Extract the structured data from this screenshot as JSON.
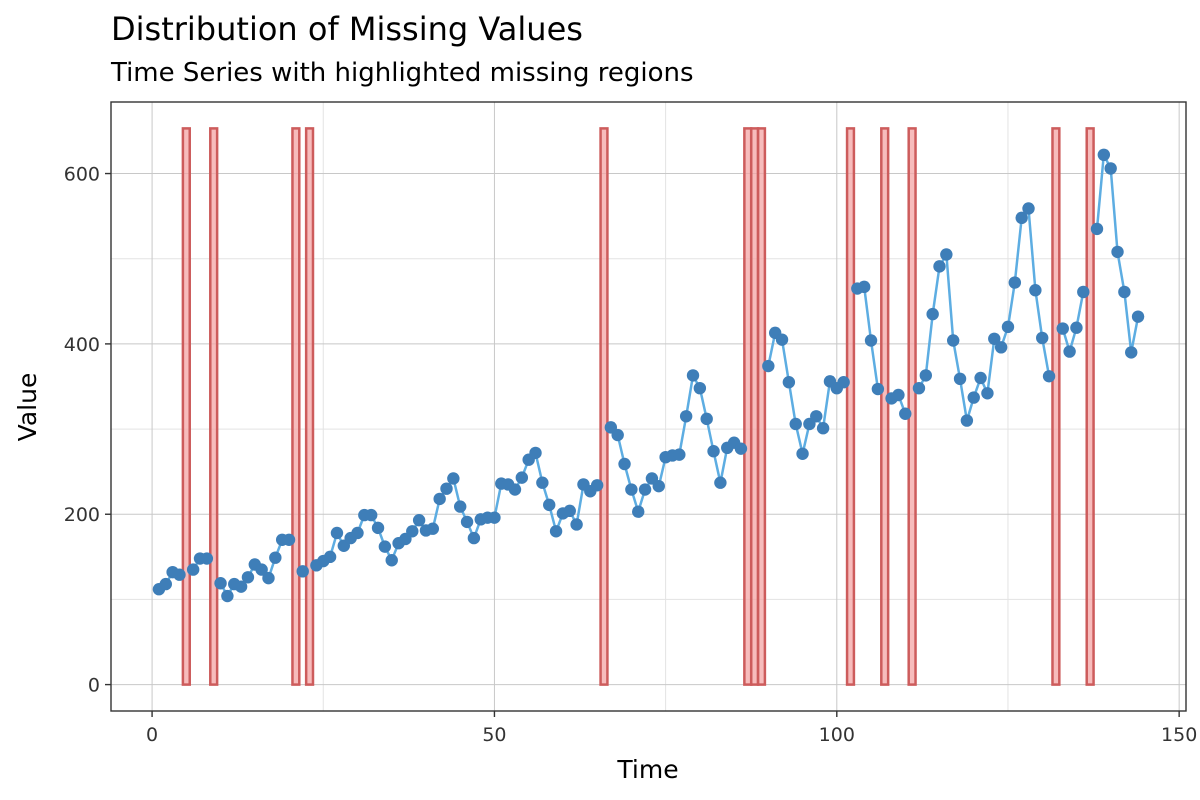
{
  "chart_data": {
    "type": "line",
    "title": "Distribution of Missing Values",
    "subtitle": "Time Series with highlighted missing regions",
    "xlabel": "Time",
    "ylabel": "Value",
    "xlim": [
      -6,
      151
    ],
    "ylim": [
      -31,
      684
    ],
    "x_ticks": [
      0,
      50,
      100,
      150
    ],
    "y_ticks": [
      0,
      200,
      400,
      600
    ],
    "grid": true,
    "colors": {
      "series": "#5DADE2",
      "points": "#3E7EB8",
      "missing_stroke": "#CD5C5C",
      "missing_fill": "#F4A6A6"
    },
    "missing_regions": [
      5,
      9,
      21,
      23,
      66,
      87,
      88,
      89,
      102,
      107,
      111,
      132,
      137
    ],
    "missing_height": 653,
    "series": [
      {
        "x": [
          1,
          2,
          3,
          4,
          6,
          7,
          8,
          10,
          11,
          12,
          13,
          14,
          15,
          16,
          17,
          18,
          19,
          20,
          22,
          24,
          25,
          26,
          27,
          28,
          29,
          30,
          31,
          32,
          33,
          34,
          35,
          36,
          37,
          38,
          39,
          40,
          41,
          42,
          43,
          44,
          45,
          46,
          47,
          48,
          49,
          50,
          51,
          52,
          53,
          54,
          55,
          56,
          57,
          58,
          59,
          60,
          61,
          62,
          63,
          64,
          65,
          67,
          68,
          69,
          70,
          71,
          72,
          73,
          74,
          75,
          76,
          77,
          78,
          79,
          80,
          81,
          82,
          83,
          84,
          85,
          86,
          90,
          91,
          92,
          93,
          94,
          95,
          96,
          97,
          98,
          99,
          100,
          101,
          103,
          104,
          105,
          106,
          108,
          109,
          110,
          112,
          113,
          114,
          115,
          116,
          117,
          118,
          119,
          120,
          121,
          122,
          123,
          124,
          125,
          126,
          127,
          128,
          129,
          130,
          131,
          133,
          134,
          135,
          136,
          138,
          139,
          140,
          141,
          142,
          143,
          144
        ],
        "y": [
          112,
          118,
          132,
          129,
          135,
          148,
          148,
          119,
          104,
          118,
          115,
          126,
          141,
          135,
          125,
          149,
          170,
          170,
          133,
          140,
          145,
          150,
          178,
          163,
          172,
          178,
          199,
          199,
          184,
          162,
          146,
          166,
          171,
          180,
          193,
          181,
          183,
          218,
          230,
          242,
          209,
          191,
          172,
          194,
          196,
          196,
          236,
          235,
          229,
          243,
          264,
          272,
          237,
          211,
          180,
          201,
          204,
          188,
          235,
          227,
          234,
          302,
          293,
          259,
          229,
          203,
          229,
          242,
          233,
          267,
          269,
          270,
          315,
          363,
          348,
          312,
          274,
          237,
          278,
          284,
          277,
          374,
          413,
          405,
          355,
          306,
          271,
          306,
          315,
          301,
          356,
          348,
          355,
          465,
          467,
          404,
          347,
          336,
          340,
          318,
          348,
          363,
          435,
          491,
          505,
          404,
          359,
          310,
          337,
          360,
          342,
          406,
          396,
          420,
          472,
          548,
          559,
          463,
          407,
          362,
          418,
          391,
          419,
          461,
          535,
          622,
          606,
          508,
          461,
          390,
          432
        ]
      }
    ]
  }
}
